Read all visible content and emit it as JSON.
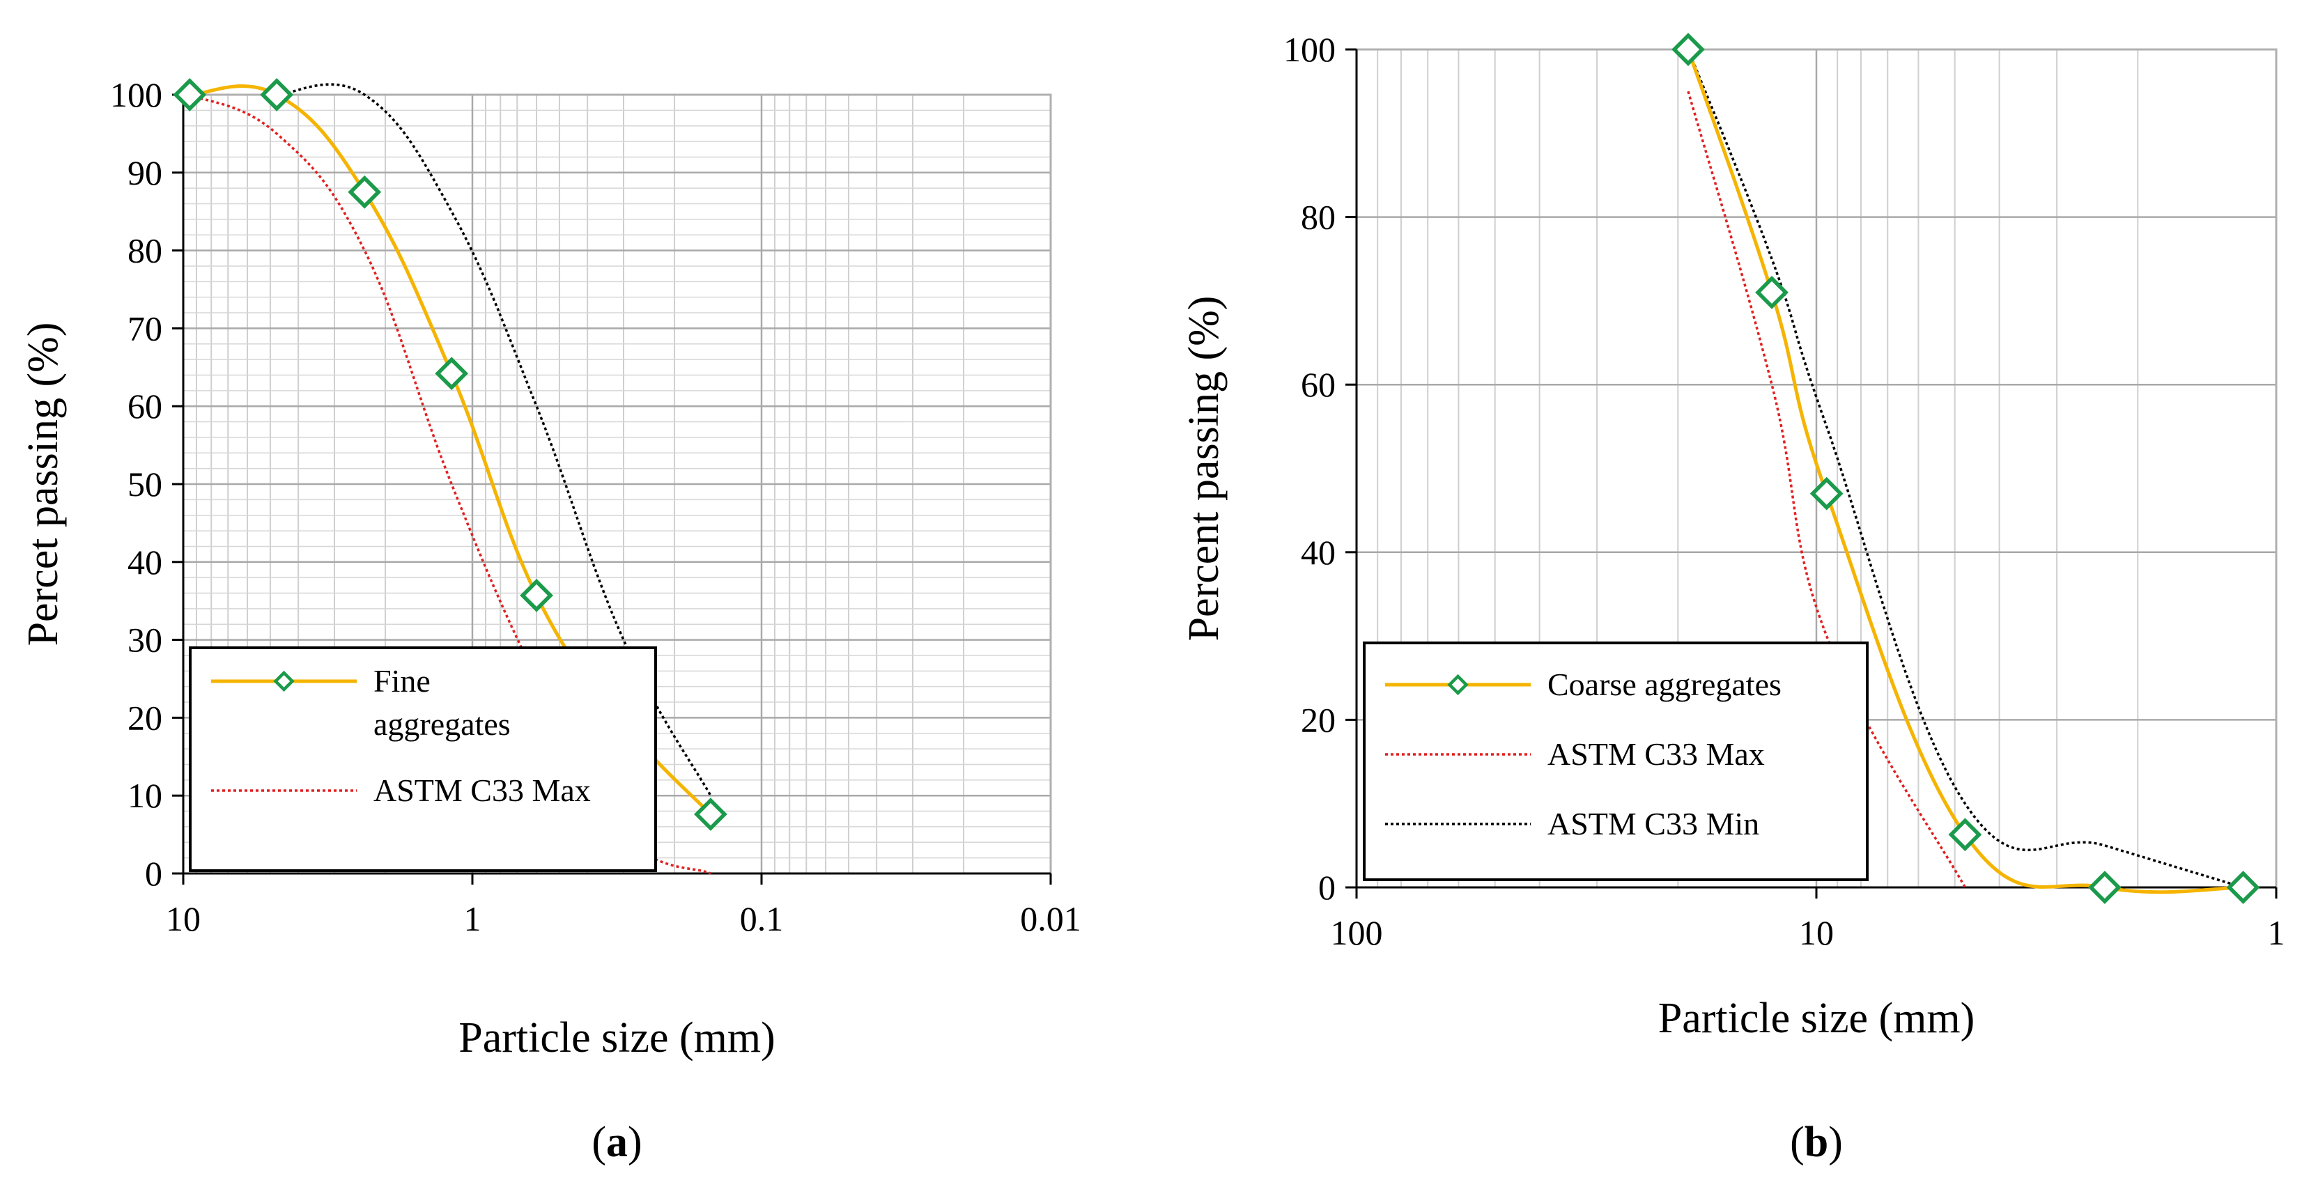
{
  "chart_data": [
    {
      "type": "line",
      "panel": "a",
      "panel_label": "(a)",
      "xlabel": "Particle size (mm)",
      "ylabel": "Percet passing (%)",
      "x_scale": "log",
      "x_reversed": true,
      "xlim": [
        10,
        0.01
      ],
      "ylim": [
        0,
        100
      ],
      "xticks": [
        10,
        1,
        0.1,
        0.01
      ],
      "xtick_labels": [
        "10",
        "1",
        "0.1",
        "0.01"
      ],
      "yticks": [
        0,
        10,
        20,
        30,
        40,
        50,
        60,
        70,
        80,
        90,
        100
      ],
      "grid": true,
      "legend_position": "bottom-left",
      "series": [
        {
          "name": "Fine aggregates",
          "color": "#f5b400",
          "marker": "diamond",
          "marker_color": "#1a9a4a",
          "style": "solid",
          "x": [
            9.5,
            4.75,
            2.36,
            1.18,
            0.6,
            0.3,
            0.15
          ],
          "y": [
            100,
            100,
            87.5,
            64.2,
            35.7,
            19.3,
            7.6
          ]
        },
        {
          "name": "ASTM C33 Max",
          "color": "#e02020",
          "style": "dotted",
          "x": [
            9.5,
            4.75,
            2.36,
            1.18,
            0.6,
            0.3,
            0.15
          ],
          "y": [
            100,
            95,
            80,
            50,
            25,
            5,
            0
          ]
        },
        {
          "name": "",
          "color": "#000000",
          "style": "dotted",
          "x": [
            4.75,
            2.36,
            1.18,
            0.6,
            0.3,
            0.15
          ],
          "y": [
            100,
            100,
            85,
            60,
            30,
            10
          ]
        }
      ]
    },
    {
      "type": "line",
      "panel": "b",
      "panel_label": "(b)",
      "xlabel": "Particle size (mm)",
      "ylabel": "Percent passing (%)",
      "x_scale": "log",
      "x_reversed": true,
      "xlim": [
        100,
        1
      ],
      "ylim": [
        0,
        100
      ],
      "xticks": [
        100,
        10,
        1
      ],
      "xtick_labels": [
        "100",
        "10",
        "1"
      ],
      "yticks": [
        0,
        20,
        40,
        60,
        80,
        100
      ],
      "grid": true,
      "legend_position": "bottom-left",
      "series": [
        {
          "name": "Coarse aggregates",
          "color": "#f5b400",
          "marker": "diamond",
          "marker_color": "#1a9a4a",
          "style": "solid",
          "x": [
            19,
            12.5,
            9.5,
            4.75,
            2.36,
            1.18
          ],
          "y": [
            100,
            71,
            47,
            6.3,
            0,
            0
          ]
        },
        {
          "name": "ASTM C33 Max",
          "color": "#e02020",
          "style": "dotted",
          "x": [
            19,
            12.5,
            9.5,
            4.75
          ],
          "y": [
            95,
            60,
            30,
            0
          ]
        },
        {
          "name": "ASTM C33 Min",
          "color": "#000000",
          "style": "dotted",
          "x": [
            19,
            12.5,
            9.5,
            4.75,
            2.36,
            1.18
          ],
          "y": [
            100,
            75,
            55,
            10,
            5,
            0
          ]
        }
      ]
    }
  ]
}
